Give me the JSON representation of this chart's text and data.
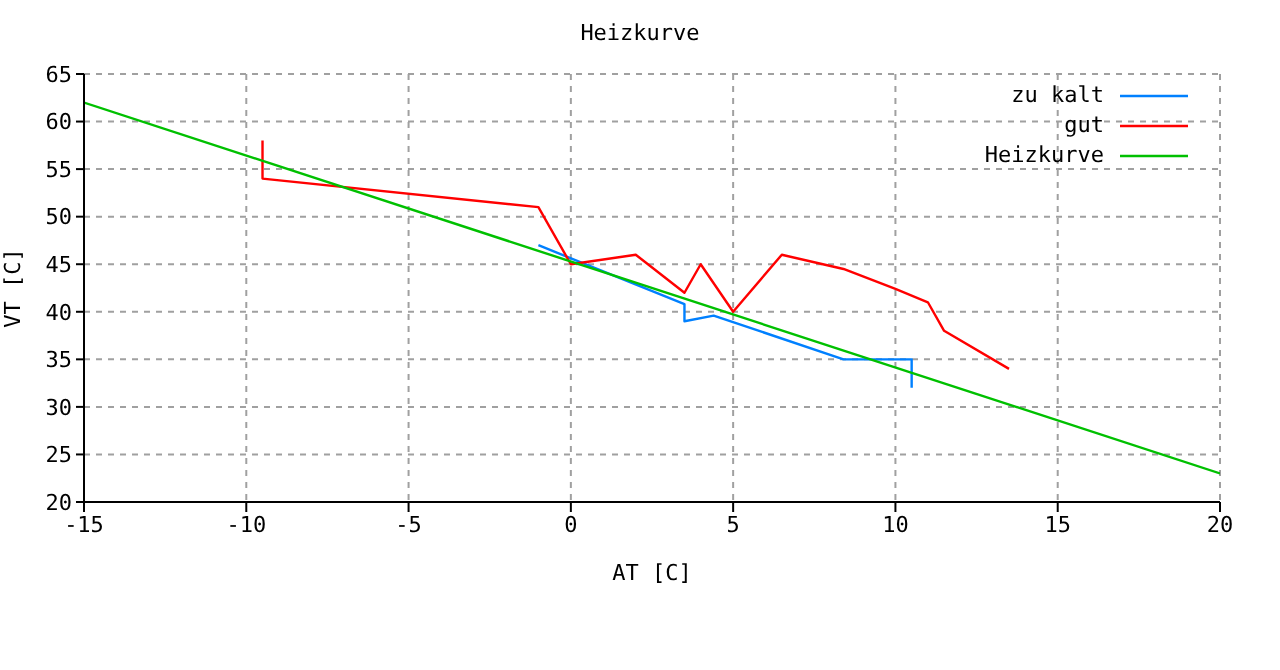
{
  "chart_data": {
    "type": "line",
    "title": "Heizkurve",
    "xlabel": "AT [C]",
    "ylabel": "VT [C]",
    "xlim": [
      -15,
      20
    ],
    "xticks": [
      -15,
      -10,
      -5,
      0,
      5,
      10,
      15,
      20
    ],
    "ylim": [
      20,
      65
    ],
    "yticks": [
      20,
      25,
      30,
      35,
      40,
      45,
      50,
      55,
      60,
      65
    ],
    "grid": true,
    "legend": "top right",
    "line_style": "solid",
    "marker": "none",
    "series": [
      {
        "name": "zu kalt",
        "color": "#0080ff",
        "x": [
          -1,
          3.5,
          3.5,
          4.4,
          8.4,
          10.5,
          10.5
        ],
        "values": [
          47,
          40.8,
          39,
          39.6,
          35,
          35,
          32
        ]
      },
      {
        "name": "gut",
        "color": "#ff0000",
        "x": [
          -9.5,
          -9.5,
          -1,
          0,
          2,
          3.5,
          4,
          5,
          6.5,
          8.4,
          10,
          11,
          11.5,
          13.5
        ],
        "values": [
          58,
          54,
          51,
          45,
          46,
          42,
          45,
          40,
          46,
          44.5,
          42.4,
          41,
          38,
          34
        ]
      },
      {
        "name": "Heizkurve",
        "color": "#00c000",
        "x": [
          -15,
          20
        ],
        "values": [
          62,
          23
        ]
      }
    ]
  }
}
